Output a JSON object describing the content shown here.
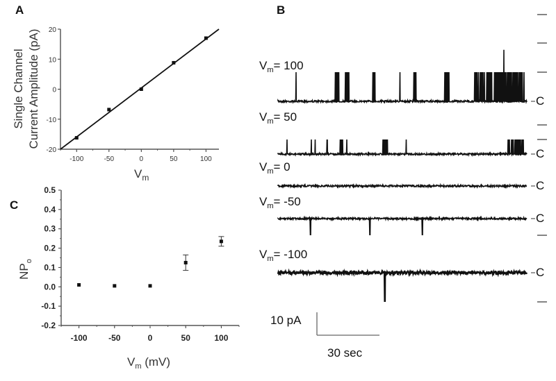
{
  "chart_data": [
    {
      "panel": "A",
      "type": "scatter",
      "ylabel_line1": "Single Channel",
      "ylabel_line2": "Current Amplitude (pA)",
      "xlabel": {
        "symbol": "V",
        "subscript": "m"
      },
      "xlim": [
        -125,
        120
      ],
      "ylim": [
        -20,
        20
      ],
      "xticks": [
        -100,
        -50,
        0,
        50,
        100
      ],
      "yticks": [
        -20,
        -10,
        0,
        10,
        20
      ],
      "grid": false,
      "points": [
        {
          "x": -100,
          "y": -16.2
        },
        {
          "x": -50,
          "y": -6.8
        },
        {
          "x": 0,
          "y": 0.0
        },
        {
          "x": 50,
          "y": 8.8
        },
        {
          "x": 100,
          "y": 17.0
        }
      ],
      "fit_line": {
        "x": [
          -125,
          120
        ],
        "y": [
          -20,
          20
        ]
      }
    },
    {
      "panel": "B",
      "type": "line",
      "traces": [
        {
          "symbol": "V",
          "subscript": "m",
          "value": "= 100",
          "vm": 100,
          "closed_label": "C"
        },
        {
          "symbol": "V",
          "subscript": "m",
          "value": "= 50",
          "vm": 50,
          "closed_label": "C"
        },
        {
          "symbol": "V",
          "subscript": "m",
          "value": "= 0",
          "vm": 0,
          "closed_label": "C"
        },
        {
          "symbol": "V",
          "subscript": "m",
          "value": "= -50",
          "vm": -50,
          "closed_label": "C"
        },
        {
          "symbol": "V",
          "subscript": "m",
          "value": "= -100",
          "vm": -100,
          "closed_label": "C"
        }
      ],
      "scale_bar": {
        "current_label": "10 pA",
        "time_label": "30 sec",
        "current_pA": 10,
        "time_s": 30
      }
    },
    {
      "panel": "C",
      "type": "scatter",
      "ylabel": {
        "symbol": "NP",
        "subscript": "o"
      },
      "xlabel": {
        "symbol": "V",
        "subscript": "m",
        "unit": " (mV)"
      },
      "xlim": [
        -125,
        125
      ],
      "ylim": [
        -0.2,
        0.5
      ],
      "xticks": [
        "-100",
        "-50",
        "0",
        "50",
        "100"
      ],
      "yticks": [
        "-0.2",
        "-0.1",
        "0.0",
        "0.1",
        "0.2",
        "0.3",
        "0.4",
        "0.5"
      ],
      "grid": false,
      "points": [
        {
          "x": -100,
          "y": 0.01,
          "err": 0.005
        },
        {
          "x": -50,
          "y": 0.005,
          "err": 0.004
        },
        {
          "x": 0,
          "y": 0.005,
          "err": 0.003
        },
        {
          "x": 50,
          "y": 0.125,
          "err": 0.04
        },
        {
          "x": 100,
          "y": 0.235,
          "err": 0.025
        }
      ]
    }
  ]
}
